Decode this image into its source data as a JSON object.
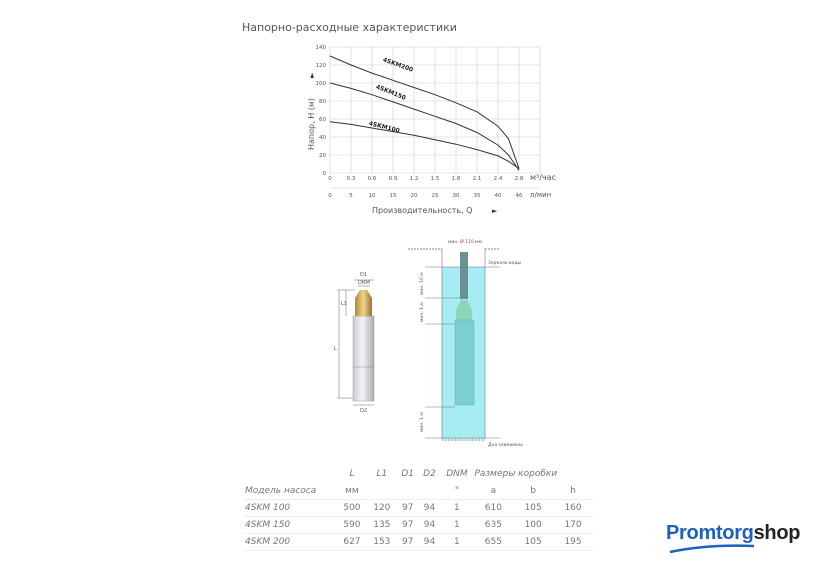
{
  "title": "Напорно-расходные характеристики",
  "chart_data": {
    "type": "line",
    "ylabel": "Напор, Н (м)",
    "xlabel": "Производительность, Q",
    "x_unit_primary": "м³/час",
    "x_unit_secondary": "л/мин",
    "x_ticks_primary": [
      "0",
      "0.3",
      "0.6",
      "0.9",
      "1.2",
      "1.5",
      "1.8",
      "2.1",
      "2.4",
      "2.8"
    ],
    "x_ticks_secondary": [
      "0",
      "5",
      "10",
      "15",
      "20",
      "25",
      "30",
      "35",
      "40",
      "46"
    ],
    "y_ticks": [
      "0",
      "20",
      "40",
      "60",
      "80",
      "100",
      "120",
      "140"
    ],
    "ylim": [
      0,
      140
    ],
    "grid": true,
    "series": [
      {
        "name": "4SKM200",
        "x": [
          0,
          0.3,
          0.6,
          0.9,
          1.2,
          1.5,
          1.8,
          2.1,
          2.4,
          2.6,
          2.8
        ],
        "y": [
          130,
          120,
          111,
          103,
          95,
          87,
          78,
          68,
          52,
          38,
          5
        ]
      },
      {
        "name": "4SKM150",
        "x": [
          0,
          0.3,
          0.6,
          0.9,
          1.2,
          1.5,
          1.8,
          2.1,
          2.4,
          2.6,
          2.8
        ],
        "y": [
          100,
          94,
          87,
          79,
          71,
          63,
          55,
          45,
          31,
          20,
          3
        ]
      },
      {
        "name": "4SKM100",
        "x": [
          0,
          0.3,
          0.6,
          0.9,
          1.2,
          1.5,
          1.8,
          2.1,
          2.4,
          2.6,
          2.8
        ],
        "y": [
          57,
          54,
          50,
          46,
          42,
          37,
          32,
          26,
          19,
          13,
          5
        ]
      }
    ]
  },
  "diagram": {
    "pump_labels": [
      "D1",
      "DNM",
      "L1",
      "L",
      "D2"
    ],
    "well_labels": [
      "мин. Ø 110 мм",
      "Зеркало воды",
      "мин. 10 м",
      "мин. 1 м",
      "мин. 1 м",
      "Дно скважины"
    ]
  },
  "table": {
    "header1": [
      "",
      "L",
      "L1",
      "D1",
      "D2",
      "DNM",
      "Размеры коробки"
    ],
    "header2": [
      "Модель насоса",
      "мм",
      "",
      "",
      "",
      "\"",
      "a",
      "b",
      "h"
    ],
    "rows": [
      [
        "4SKM 100",
        "500",
        "120",
        "97",
        "94",
        "1",
        "610",
        "105",
        "160"
      ],
      [
        "4SKM 150",
        "590",
        "135",
        "97",
        "94",
        "1",
        "635",
        "100",
        "170"
      ],
      [
        "4SKM 200",
        "627",
        "153",
        "97",
        "94",
        "1",
        "655",
        "105",
        "195"
      ]
    ]
  },
  "logo": {
    "part1": "Promtorg",
    "part2": "shop",
    "color1": "#1f5fbf",
    "color2": "#222222"
  }
}
